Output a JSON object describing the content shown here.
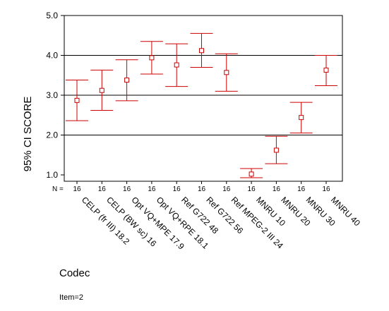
{
  "chart_data": {
    "type": "errorbar",
    "ylabel": "95% CI SCORE",
    "xlabel": "Codec",
    "note": "Item=2",
    "n_label": "N =",
    "ylim": [
      0.9,
      5.0
    ],
    "yticks": [
      1.0,
      2.0,
      3.0,
      4.0,
      5.0
    ],
    "ytick_labels": [
      "1.0",
      "2.0",
      "3.0",
      "4.0",
      "5.0"
    ],
    "reference_lines": [
      2.0,
      3.0,
      4.0
    ],
    "color": "#cc0000",
    "categories": [
      "CELP (fr III) 18.2",
      "CELP (BW sc) 16",
      "Opt VQ+MPE 17.9",
      "Opt VQ+RPE 18.1",
      "Ref G722 48",
      "Ref G722 56",
      "Ref MPEG-2 III 24",
      "MNRU 10",
      "MNRU 20",
      "MNRU 30",
      "MNRU 40"
    ],
    "n_values": [
      "16",
      "16",
      "16",
      "16",
      "16",
      "16",
      "16",
      "16",
      "16",
      "16",
      "16"
    ],
    "means": [
      2.87,
      3.12,
      3.38,
      3.94,
      3.76,
      4.12,
      3.57,
      1.02,
      1.62,
      2.44,
      3.63
    ],
    "lower": [
      2.36,
      2.62,
      2.86,
      3.53,
      3.22,
      3.7,
      3.1,
      0.93,
      1.28,
      2.05,
      3.24
    ],
    "upper": [
      3.38,
      3.63,
      3.89,
      4.35,
      4.29,
      4.55,
      4.04,
      1.16,
      1.97,
      2.82,
      4.0
    ]
  }
}
